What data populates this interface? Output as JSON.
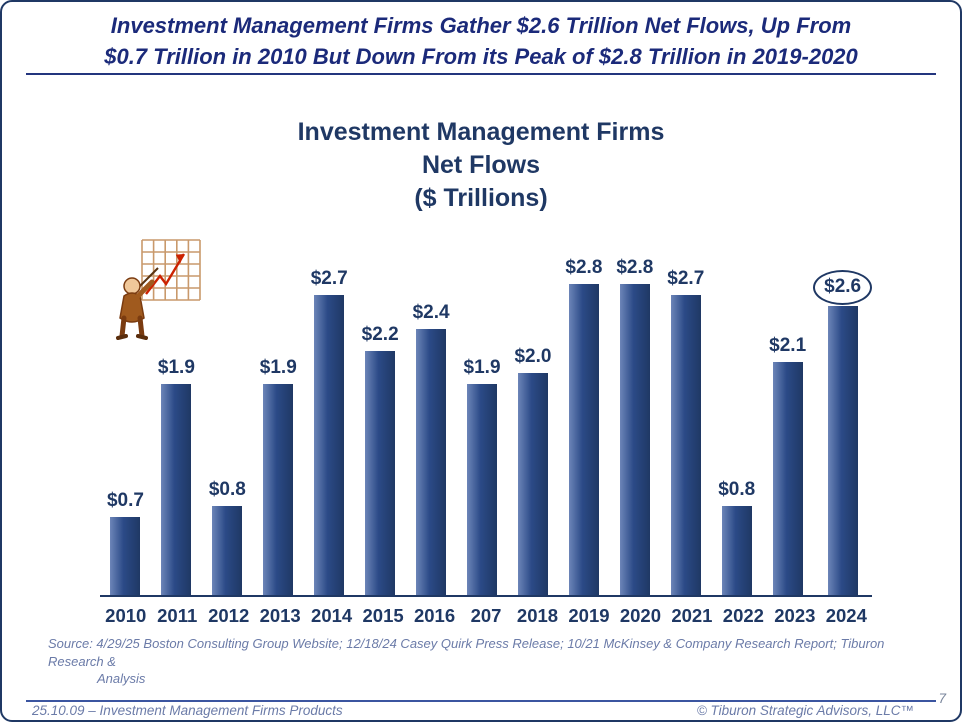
{
  "slide": {
    "headline_line1": "Investment Management Firms Gather $2.6 Trillion Net Flows, Up From",
    "headline_line2": "$0.7 Trillion in 2010 But Down From its Peak of $2.8 Trillion in 2019-2020",
    "source_line1": "Source:  4/29/25 Boston Consulting Group Website; 12/18/24 Casey Quirk Press Release; 10/21 McKinsey & Company Research Report; Tiburon Research &",
    "source_line2": "Analysis",
    "footer_left": "25.10.09 – Investment Management Firms Products",
    "footer_right": "© Tiburon Strategic Advisors, LLC™",
    "page_number": "7"
  },
  "chart_data": {
    "type": "bar",
    "title_lines": [
      "Investment Management Firms",
      "Net Flows",
      "($ Trillions)"
    ],
    "categories": [
      "2010",
      "2011",
      "2012",
      "2013",
      "2014",
      "2015",
      "2016",
      "207",
      "2018",
      "2019",
      "2020",
      "2021",
      "2022",
      "2023",
      "2024"
    ],
    "values": [
      0.7,
      1.9,
      0.8,
      1.9,
      2.7,
      2.2,
      2.4,
      1.9,
      2.0,
      2.8,
      2.8,
      2.7,
      0.8,
      2.1,
      2.6
    ],
    "labels": [
      "$0.7",
      "$1.9",
      "$0.8",
      "$1.9",
      "$2.7",
      "$2.2",
      "$2.4",
      "$1.9",
      "$2.0",
      "$2.8",
      "$2.8",
      "$2.7",
      "$0.8",
      "$2.1",
      "$2.6"
    ],
    "highlight_index": 14,
    "ylim": [
      0,
      2.8
    ],
    "xlabel": "",
    "ylabel": "",
    "grid": false,
    "legend": false,
    "bar_color": "#1f3864",
    "bar_color_light": "#6c85b8",
    "highlight_style": "ellipse-around-label"
  },
  "colors": {
    "navy": "#1f3864",
    "headline_navy": "#1b2a7a",
    "muted_blue": "#6b7ba8"
  },
  "icons": {
    "clipart": "presenter-pointing-at-chart-icon"
  }
}
